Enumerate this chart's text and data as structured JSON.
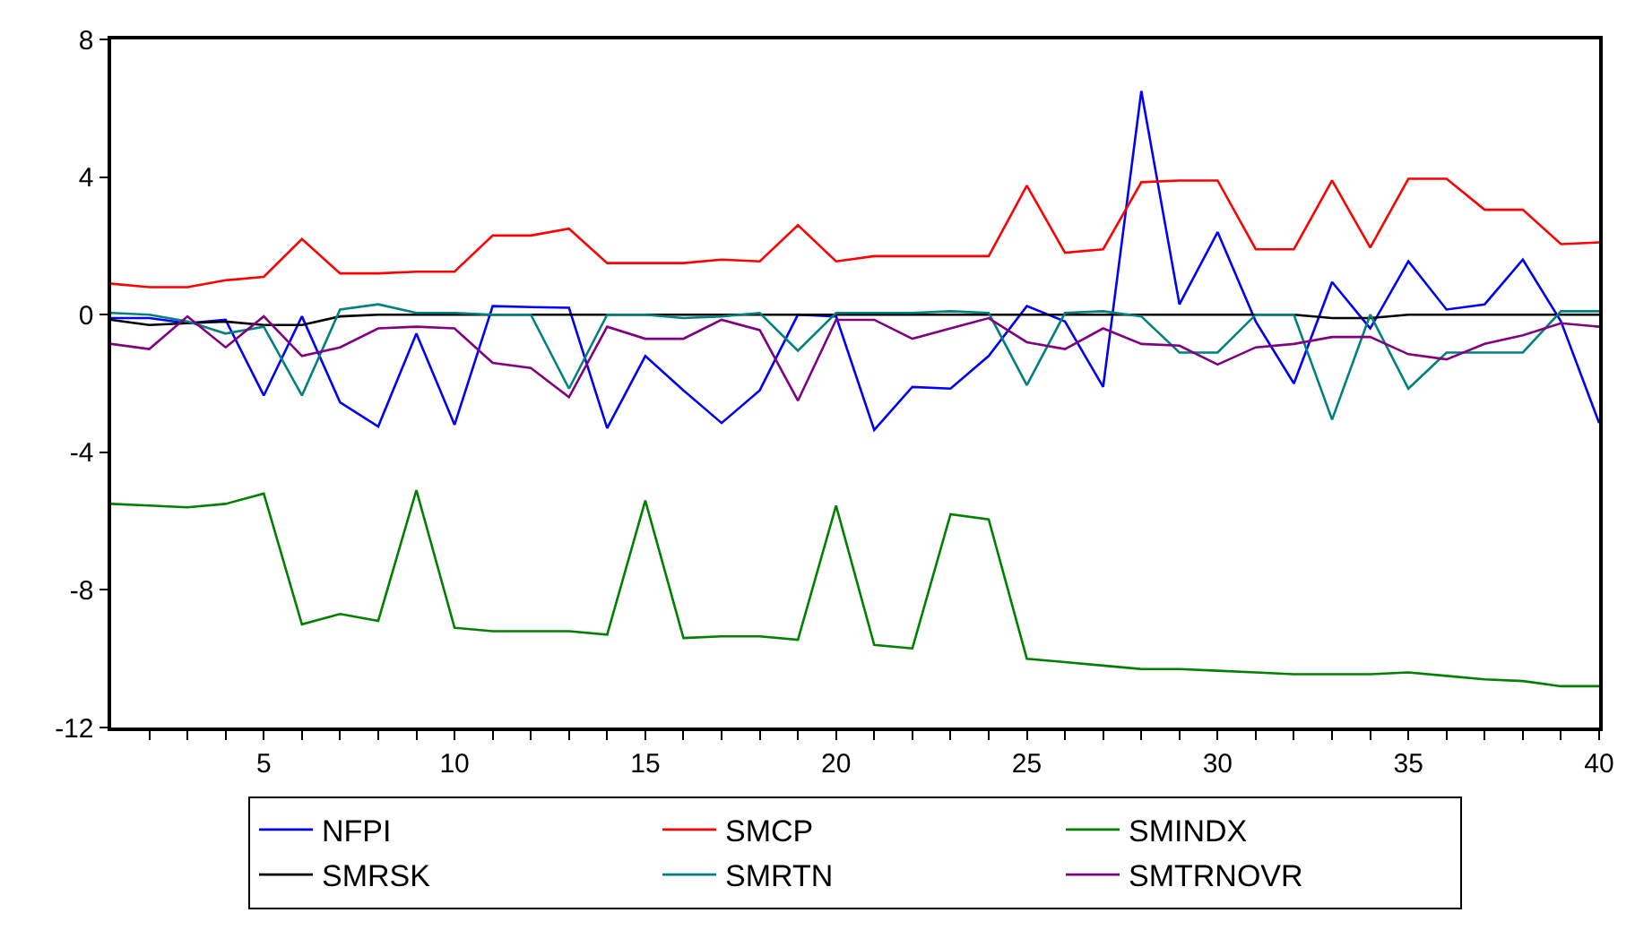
{
  "chart_data": {
    "type": "line",
    "x": [
      1,
      2,
      3,
      4,
      5,
      6,
      7,
      8,
      9,
      10,
      11,
      12,
      13,
      14,
      15,
      16,
      17,
      18,
      19,
      20,
      21,
      22,
      23,
      24,
      25,
      26,
      27,
      28,
      29,
      30,
      31,
      32,
      33,
      34,
      35,
      36,
      37,
      38,
      39,
      40
    ],
    "series": [
      {
        "name": "NFPI",
        "color": "#0000ff",
        "values": [
          -0.1,
          -0.1,
          -0.25,
          -0.15,
          -2.35,
          -0.05,
          -2.55,
          -3.25,
          -0.55,
          -3.2,
          0.25,
          0.22,
          0.2,
          -3.3,
          -1.2,
          -2.2,
          -3.15,
          -2.2,
          0.0,
          -0.05,
          -3.35,
          -2.1,
          -2.15,
          -1.2,
          0.25,
          -0.2,
          -2.1,
          6.5,
          0.3,
          2.4,
          -0.2,
          -2.0,
          0.95,
          -0.4,
          1.55,
          0.15,
          0.3,
          1.6,
          -0.2,
          -3.15
        ]
      },
      {
        "name": "SMCP",
        "color": "#ff0000",
        "values": [
          0.9,
          0.8,
          0.8,
          1.0,
          1.1,
          2.2,
          1.2,
          1.2,
          1.25,
          1.25,
          2.3,
          2.3,
          2.5,
          1.5,
          1.5,
          1.5,
          1.6,
          1.55,
          2.6,
          1.55,
          1.7,
          1.7,
          1.7,
          1.7,
          3.75,
          1.8,
          1.9,
          3.85,
          3.9,
          3.9,
          1.9,
          1.9,
          3.9,
          1.95,
          3.95,
          3.95,
          3.05,
          3.05,
          2.05,
          2.1
        ]
      },
      {
        "name": "SMINDX",
        "color": "#008000",
        "values": [
          -5.5,
          -5.55,
          -5.6,
          -5.5,
          -5.2,
          -9.0,
          -8.7,
          -8.9,
          -5.1,
          -9.1,
          -9.2,
          -9.2,
          -9.2,
          -9.3,
          -5.4,
          -9.4,
          -9.35,
          -9.35,
          -9.45,
          -5.55,
          -9.6,
          -9.7,
          -5.8,
          -5.95,
          -10.0,
          -10.1,
          -10.2,
          -10.3,
          -10.3,
          -10.35,
          -10.4,
          -10.45,
          -10.45,
          -10.45,
          -10.4,
          -10.5,
          -10.6,
          -10.65,
          -10.8,
          -10.8
        ]
      },
      {
        "name": "SMRSK",
        "color": "#000000",
        "values": [
          -0.15,
          -0.3,
          -0.25,
          -0.2,
          -0.3,
          -0.3,
          -0.05,
          0.0,
          0.0,
          0.0,
          0.0,
          0.0,
          0.0,
          0.0,
          0.0,
          0.0,
          0.0,
          0.0,
          0.0,
          0.0,
          0.0,
          0.0,
          0.0,
          0.0,
          0.0,
          0.0,
          0.0,
          0.0,
          0.0,
          0.0,
          0.0,
          0.0,
          -0.1,
          -0.1,
          0.0,
          0.0,
          0.0,
          0.0,
          0.0,
          0.0
        ]
      },
      {
        "name": "SMRTN",
        "color": "#008080",
        "values": [
          0.05,
          0.0,
          -0.2,
          -0.55,
          -0.35,
          -2.35,
          0.15,
          0.3,
          0.05,
          0.05,
          0.0,
          0.0,
          -2.15,
          0.0,
          0.0,
          -0.1,
          -0.05,
          0.05,
          -1.05,
          0.05,
          0.05,
          0.05,
          0.1,
          0.05,
          -2.05,
          0.05,
          0.1,
          -0.05,
          -1.1,
          -1.1,
          0.0,
          0.0,
          -3.05,
          0.0,
          -2.15,
          -1.1,
          -1.1,
          -1.1,
          0.1,
          0.1
        ]
      },
      {
        "name": "SMTRNOVR",
        "color": "#800080",
        "values": [
          -0.85,
          -1.0,
          -0.05,
          -0.95,
          -0.05,
          -1.2,
          -0.95,
          -0.4,
          -0.35,
          -0.4,
          -1.4,
          -1.55,
          -2.4,
          -0.35,
          -0.7,
          -0.7,
          -0.15,
          -0.45,
          -2.5,
          -0.15,
          -0.15,
          -0.7,
          -0.4,
          -0.1,
          -0.8,
          -1.0,
          -0.4,
          -0.85,
          -0.9,
          -1.45,
          -0.95,
          -0.85,
          -0.65,
          -0.65,
          -1.15,
          -1.3,
          -0.85,
          -0.6,
          -0.25,
          -0.35
        ]
      }
    ],
    "xlim": [
      1,
      40
    ],
    "xticks": [
      {
        "value": 2,
        "label": null
      },
      {
        "value": 3,
        "label": null
      },
      {
        "value": 4,
        "label": null
      },
      5,
      {
        "value": 6,
        "label": null
      },
      {
        "value": 7,
        "label": null
      },
      {
        "value": 8,
        "label": null
      },
      {
        "value": 9,
        "label": null
      },
      10,
      {
        "value": 11,
        "label": null
      },
      {
        "value": 12,
        "label": null
      },
      {
        "value": 13,
        "label": null
      },
      {
        "value": 14,
        "label": null
      },
      15,
      {
        "value": 16,
        "label": null
      },
      {
        "value": 17,
        "label": null
      },
      {
        "value": 18,
        "label": null
      },
      {
        "value": 19,
        "label": null
      },
      20,
      {
        "value": 21,
        "label": null
      },
      {
        "value": 22,
        "label": null
      },
      {
        "value": 23,
        "label": null
      },
      {
        "value": 24,
        "label": null
      },
      25,
      {
        "value": 26,
        "label": null
      },
      {
        "value": 27,
        "label": null
      },
      {
        "value": 28,
        "label": null
      },
      {
        "value": 29,
        "label": null
      },
      30,
      {
        "value": 31,
        "label": null
      },
      {
        "value": 32,
        "label": null
      },
      {
        "value": 33,
        "label": null
      },
      {
        "value": 34,
        "label": null
      },
      35,
      {
        "value": 36,
        "label": null
      },
      {
        "value": 37,
        "label": null
      },
      {
        "value": 38,
        "label": null
      },
      {
        "value": 39,
        "label": null
      },
      40
    ],
    "ylim": [
      -12,
      8
    ],
    "yticks": [
      -12,
      -8,
      -4,
      0,
      4,
      8
    ],
    "legend": "bottom",
    "marker": "none",
    "line_style": "solid"
  }
}
